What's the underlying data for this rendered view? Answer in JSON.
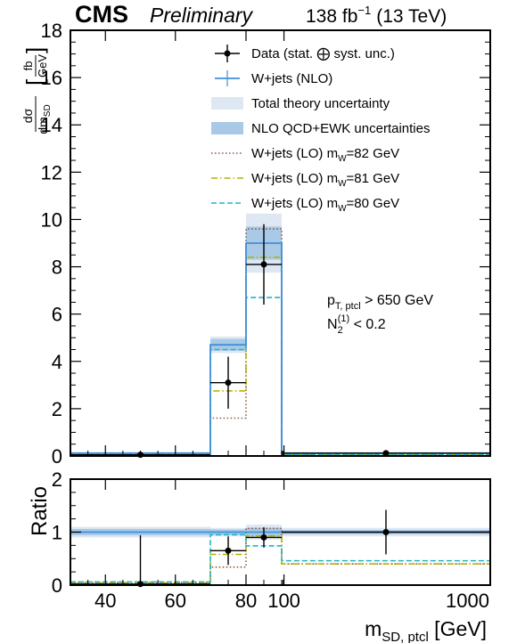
{
  "header": {
    "experiment": "CMS",
    "status": "Preliminary",
    "luminosity_prefix": "138 fb",
    "luminosity_exp": "−1",
    "energy": "(13 TeV)"
  },
  "annotation": {
    "line1_main": "p",
    "line1_sub": "T, ptcl",
    "line1_rest": " > 650 GeV",
    "line2_main": "N",
    "line2_sub": "2",
    "line2_sup": "(1)",
    "line2_rest": " < 0.2"
  },
  "chart_data": {
    "type": "histogram",
    "bin_edges": [
      30,
      70,
      80,
      90,
      1000
    ],
    "x_tick_labels": [
      "40",
      "60",
      "80",
      "100",
      "1000"
    ],
    "xlabel_main": "m",
    "xlabel_sub": "SD, ptcl",
    "xlabel_unit": " [GeV]",
    "ylabel": {
      "num": "dσ",
      "den_main": "dm",
      "den_sub": "SD",
      "unit_num": "fb",
      "unit_den": "GeV"
    },
    "ylim": [
      0,
      18
    ],
    "y_ticks": [
      0,
      2,
      4,
      6,
      8,
      10,
      12,
      14,
      16,
      18
    ],
    "ratio": {
      "ylabel": "Ratio",
      "ylim": [
        0,
        2
      ],
      "y_ticks": [
        0,
        1,
        2
      ]
    },
    "legend": [
      {
        "label": "Data (stat. ⨁ syst. unc.)",
        "style": "data"
      },
      {
        "label": "W+jets (NLO)",
        "style": "nlo"
      },
      {
        "label": "Total theory uncertainty",
        "style": "total-band"
      },
      {
        "label": "NLO QCD+EWK uncertainties",
        "style": "qcd-band"
      },
      {
        "label": "W+jets (LO) m",
        "sub": "W",
        "suffix": "=82 GeV",
        "style": "lo82"
      },
      {
        "label": "W+jets (LO) m",
        "sub": "W",
        "suffix": "=81 GeV",
        "style": "lo81"
      },
      {
        "label": "W+jets (LO) m",
        "sub": "W",
        "suffix": "=80 GeV",
        "style": "lo80"
      }
    ],
    "colors": {
      "nlo": "#3f90da",
      "total_band": "#dde8f3",
      "qcd_band": "#a9c9e6",
      "lo82": "#8a5a44",
      "lo81": "#b5b300",
      "lo80": "#1fb5c9",
      "data": "#000000"
    },
    "series": {
      "data": {
        "x": [
          50,
          75,
          85,
          545
        ],
        "y": [
          0.05,
          3.1,
          8.1,
          0.12
        ],
        "err": [
          0.05,
          1.1,
          1.7,
          0.05
        ]
      },
      "nlo": [
        0.12,
        4.7,
        9.0,
        0.12
      ],
      "total_unc": [
        0.02,
        0.35,
        1.25,
        0.02
      ],
      "qcd_unc": [
        0.02,
        0.25,
        0.7,
        0.01
      ],
      "lo82": [
        0.08,
        1.6,
        9.6,
        0.05
      ],
      "lo81": [
        0.05,
        2.75,
        8.4,
        0.05
      ],
      "lo80": [
        0.08,
        4.5,
        6.7,
        0.06
      ]
    },
    "ratio_series": {
      "data": {
        "y": [
          0.02,
          0.65,
          0.9,
          1.0
        ],
        "err": [
          0.92,
          0.27,
          0.19,
          0.42
        ]
      },
      "nlo": [
        1.0,
        1.0,
        1.0,
        1.0
      ],
      "total_unc": [
        0.1,
        0.08,
        0.14,
        0.08
      ],
      "qcd_unc": [
        0.06,
        0.05,
        0.08,
        0.04
      ],
      "lo82": [
        0.05,
        0.34,
        1.07,
        0.4
      ],
      "lo81": [
        0.04,
        0.58,
        0.93,
        0.4
      ],
      "lo80": [
        0.06,
        0.95,
        0.74,
        0.46
      ]
    }
  }
}
